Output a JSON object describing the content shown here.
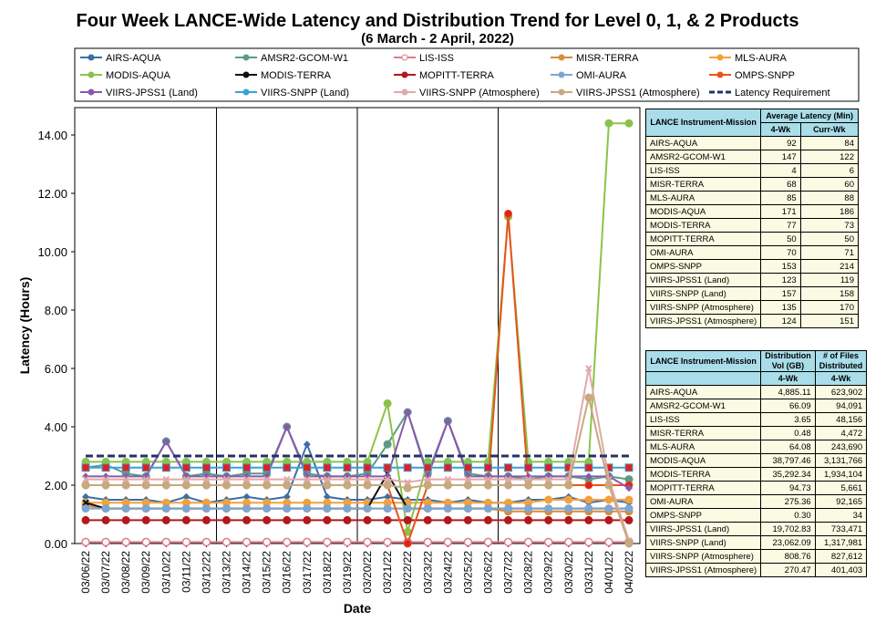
{
  "title": "Four Week LANCE-Wide Latency and Distribution Trend for Level 0, 1, & 2 Products",
  "subtitle": "(6  March   - 2  April,  2022)",
  "chart_data": {
    "type": "line",
    "xlabel": "Date",
    "ylabel": "Latency (Hours)",
    "ylim": [
      0,
      14.0
    ],
    "yticks": [
      "0.00",
      "2.00",
      "4.00",
      "6.00",
      "8.00",
      "10.00",
      "12.00",
      "14.00"
    ],
    "grid": "vertical lines every 7 days",
    "legend_position": "top",
    "categories": [
      "03/06/22",
      "03/07/22",
      "03/08/22",
      "03/09/22",
      "03/10/22",
      "03/11/22",
      "03/12/22",
      "03/13/22",
      "03/14/22",
      "03/15/22",
      "03/16/22",
      "03/17/22",
      "03/18/22",
      "03/19/22",
      "03/20/22",
      "03/21/22",
      "03/22/22",
      "03/23/22",
      "03/24/22",
      "03/25/22",
      "03/26/22",
      "03/27/22",
      "03/28/22",
      "03/29/22",
      "03/30/22",
      "03/31/22",
      "04/01/22",
      "04/02/22"
    ],
    "series": [
      {
        "name": "AIRS-AQUA",
        "color": "#3d6ea8",
        "marker": "diamond",
        "values": [
          1.6,
          1.5,
          1.5,
          1.5,
          1.4,
          1.6,
          1.4,
          1.5,
          1.6,
          1.5,
          1.6,
          3.4,
          1.6,
          1.5,
          1.5,
          1.6,
          1.5,
          1.5,
          1.4,
          1.5,
          1.4,
          1.4,
          1.5,
          1.5,
          1.6,
          1.4,
          1.5,
          1.4
        ]
      },
      {
        "name": "AMSR2-GCOM-W1",
        "color": "#5a9d84",
        "marker": "circle",
        "values": [
          2.6,
          2.7,
          2.4,
          2.3,
          3.5,
          2.3,
          2.4,
          2.3,
          2.4,
          2.4,
          4.0,
          2.4,
          2.3,
          2.3,
          2.4,
          3.4,
          4.5,
          2.4,
          4.2,
          2.4,
          2.3,
          2.3,
          2.2,
          2.3,
          2.3,
          2.2,
          2.3,
          2.2
        ]
      },
      {
        "name": "LIS-ISS",
        "color": "#e07a8f",
        "marker": "hollow",
        "values": [
          0.05,
          0.05,
          0.05,
          0.05,
          0.05,
          0.05,
          0.05,
          0.05,
          0.05,
          0.05,
          0.05,
          0.05,
          0.05,
          0.05,
          0.05,
          0.05,
          0.05,
          0.05,
          0.05,
          0.05,
          0.05,
          0.05,
          0.05,
          0.05,
          0.05,
          0.05,
          0.05,
          0.05
        ]
      },
      {
        "name": "MISR-TERRA",
        "color": "#d98c3a",
        "marker": "circle",
        "values": [
          1.3,
          1.2,
          1.2,
          1.2,
          1.2,
          1.2,
          1.2,
          1.2,
          1.2,
          1.2,
          1.2,
          1.2,
          1.2,
          1.2,
          1.2,
          1.2,
          1.2,
          1.2,
          1.2,
          1.2,
          1.2,
          1.1,
          1.1,
          1.1,
          1.1,
          1.1,
          1.1,
          1.1
        ]
      },
      {
        "name": "MLS-AURA",
        "color": "#f2a13d",
        "marker": "circle",
        "values": [
          1.4,
          1.4,
          1.4,
          1.4,
          1.4,
          1.4,
          1.4,
          1.4,
          1.4,
          1.4,
          1.4,
          1.4,
          1.4,
          1.4,
          1.4,
          1.4,
          1.4,
          1.4,
          1.4,
          1.4,
          1.4,
          1.4,
          1.4,
          1.5,
          1.5,
          1.5,
          1.5,
          1.5
        ]
      },
      {
        "name": "MODIS-AQUA",
        "color": "#8bc34a",
        "marker": "circle",
        "values": [
          2.8,
          2.8,
          2.8,
          2.8,
          2.8,
          2.8,
          2.8,
          2.8,
          2.8,
          2.8,
          2.8,
          2.8,
          2.8,
          2.8,
          2.8,
          4.8,
          0.4,
          2.8,
          2.8,
          2.8,
          2.8,
          11.2,
          2.8,
          2.8,
          2.8,
          2.8,
          14.4,
          14.4
        ]
      },
      {
        "name": "MODIS-TERRA",
        "color": "#111111",
        "marker": "cross",
        "values": [
          1.4,
          1.2,
          1.2,
          1.2,
          1.2,
          1.2,
          1.2,
          1.2,
          1.2,
          1.2,
          1.2,
          1.2,
          1.2,
          1.2,
          1.2,
          2.4,
          1.2,
          1.2,
          1.2,
          1.2,
          1.2,
          1.2,
          1.2,
          1.2,
          1.2,
          1.2,
          1.2,
          1.2
        ]
      },
      {
        "name": "MOPITT-TERRA",
        "color": "#b2191d",
        "marker": "circle",
        "values": [
          0.8,
          0.8,
          0.8,
          0.8,
          0.8,
          0.8,
          0.8,
          0.8,
          0.8,
          0.8,
          0.8,
          0.8,
          0.8,
          0.8,
          0.8,
          0.8,
          0.8,
          0.8,
          0.8,
          0.8,
          0.8,
          0.8,
          0.8,
          0.8,
          0.8,
          0.8,
          0.8,
          0.8
        ]
      },
      {
        "name": "OMI-AURA",
        "color": "#7fa6cf",
        "marker": "circle",
        "values": [
          1.2,
          1.2,
          1.2,
          1.2,
          1.2,
          1.2,
          1.2,
          1.2,
          1.2,
          1.2,
          1.2,
          1.2,
          1.2,
          1.2,
          1.2,
          1.2,
          1.2,
          1.2,
          1.2,
          1.2,
          1.2,
          1.2,
          1.2,
          1.2,
          1.2,
          1.2,
          1.2,
          1.2
        ]
      },
      {
        "name": "OMPS-SNPP",
        "color": "#e8541c",
        "marker": "circle",
        "values": [
          2.0,
          2.0,
          2.0,
          2.0,
          2.0,
          2.0,
          2.0,
          2.0,
          2.0,
          2.0,
          2.0,
          2.0,
          2.0,
          2.0,
          2.0,
          2.0,
          0.0,
          2.0,
          2.0,
          2.0,
          2.0,
          11.3,
          2.0,
          2.0,
          2.0,
          2.0,
          2.0,
          2.0
        ]
      },
      {
        "name": "VIIRS-JPSS1 (Land)",
        "color": "#8a58b0",
        "marker": "diamond",
        "values": [
          2.3,
          2.3,
          2.3,
          2.3,
          3.5,
          2.3,
          2.3,
          2.3,
          2.3,
          2.3,
          4.0,
          2.3,
          2.3,
          2.3,
          2.3,
          2.3,
          4.5,
          2.3,
          4.2,
          2.3,
          2.3,
          2.3,
          2.3,
          2.3,
          2.3,
          2.3,
          2.3,
          1.9
        ]
      },
      {
        "name": "VIIRS-SNPP (Land)",
        "color": "#3aa0d8",
        "marker": "square",
        "values": [
          2.6,
          2.6,
          2.6,
          2.6,
          2.6,
          2.6,
          2.6,
          2.6,
          2.6,
          2.6,
          2.6,
          2.6,
          2.6,
          2.6,
          2.6,
          2.6,
          2.6,
          2.6,
          2.6,
          2.6,
          2.6,
          2.6,
          2.6,
          2.6,
          2.6,
          2.6,
          2.6,
          2.6
        ]
      },
      {
        "name": "VIIRS-SNPP (Atmosphere)",
        "color": "#e3a8a8",
        "marker": "cross",
        "values": [
          2.2,
          2.2,
          2.2,
          2.2,
          2.2,
          2.2,
          2.2,
          2.2,
          2.2,
          2.2,
          2.2,
          2.2,
          2.2,
          2.2,
          2.2,
          2.2,
          2.1,
          2.2,
          2.2,
          2.2,
          2.2,
          2.2,
          2.2,
          2.2,
          2.2,
          6.0,
          2.2,
          0.1
        ]
      },
      {
        "name": "VIIRS-JPSS1 (Atmosphere)",
        "color": "#c6a97e",
        "marker": "circle",
        "values": [
          2.0,
          2.0,
          2.0,
          2.0,
          2.0,
          2.0,
          2.0,
          2.0,
          2.0,
          2.0,
          2.0,
          2.0,
          2.0,
          2.0,
          2.0,
          2.0,
          1.9,
          2.0,
          2.0,
          2.0,
          2.0,
          2.0,
          2.0,
          2.0,
          2.0,
          5.0,
          2.0,
          0.0
        ]
      },
      {
        "name": "Latency Requirement",
        "color": "#223366",
        "marker": "dash",
        "values": [
          3.0,
          3.0,
          3.0,
          3.0,
          3.0,
          3.0,
          3.0,
          3.0,
          3.0,
          3.0,
          3.0,
          3.0,
          3.0,
          3.0,
          3.0,
          3.0,
          3.0,
          3.0,
          3.0,
          3.0,
          3.0,
          3.0,
          3.0,
          3.0,
          3.0,
          3.0,
          3.0,
          3.0
        ]
      }
    ]
  },
  "table1": {
    "header": {
      "col1": "LANCE Instrument-Mission",
      "col2": "Average Latency (Min)",
      "sub1": "4-Wk",
      "sub2": "Curr-Wk"
    },
    "rows": [
      [
        "AIRS-AQUA",
        "92",
        "84"
      ],
      [
        "AMSR2-GCOM-W1",
        "147",
        "122"
      ],
      [
        "LIS-ISS",
        "4",
        "6"
      ],
      [
        "MISR-TERRA",
        "68",
        "60"
      ],
      [
        "MLS-AURA",
        "85",
        "88"
      ],
      [
        "MODIS-AQUA",
        "171",
        "186"
      ],
      [
        "MODIS-TERRA",
        "77",
        "73"
      ],
      [
        "MOPITT-TERRA",
        "50",
        "50"
      ],
      [
        "OMI-AURA",
        "70",
        "71"
      ],
      [
        "OMPS-SNPP",
        "153",
        "214"
      ],
      [
        "VIIRS-JPSS1 (Land)",
        "123",
        "119"
      ],
      [
        "VIIRS-SNPP (Land)",
        "157",
        "158"
      ],
      [
        "VIIRS-SNPP (Atmosphere)",
        "135",
        "170"
      ],
      [
        "VIIRS-JPSS1 (Atmosphere)",
        "124",
        "151"
      ]
    ]
  },
  "table2": {
    "header": {
      "col1": "LANCE Instrument-Mission",
      "col2": "Distribution Vol (GB)",
      "col3": "# of Files Distributed",
      "sub2": "4-Wk",
      "sub3": "4-Wk"
    },
    "rows": [
      [
        "AIRS-AQUA",
        "4,885.11",
        "623,902"
      ],
      [
        "AMSR2-GCOM-W1",
        "66.09",
        "94,091"
      ],
      [
        "LIS-ISS",
        "3.65",
        "48,156"
      ],
      [
        "MISR-TERRA",
        "0.48",
        "4,472"
      ],
      [
        "MLS-AURA",
        "64.08",
        "243,690"
      ],
      [
        "MODIS-AQUA",
        "38,797.46",
        "3,131,766"
      ],
      [
        "MODIS-TERRA",
        "35,292.34",
        "1,934,104"
      ],
      [
        "MOPITT-TERRA",
        "94.73",
        "5,661"
      ],
      [
        "OMI-AURA",
        "275.36",
        "92,165"
      ],
      [
        "OMPS-SNPP",
        "0.30",
        "34"
      ],
      [
        "VIIRS-JPSS1 (Land)",
        "19,702.83",
        "733,471"
      ],
      [
        "VIIRS-SNPP (Land)",
        "23,062.09",
        "1,317,981"
      ],
      [
        "VIIRS-SNPP (Atmosphere)",
        "808.76",
        "827,612"
      ],
      [
        "VIIRS-JPSS1 (Atmosphere)",
        "270.47",
        "401,403"
      ]
    ]
  }
}
